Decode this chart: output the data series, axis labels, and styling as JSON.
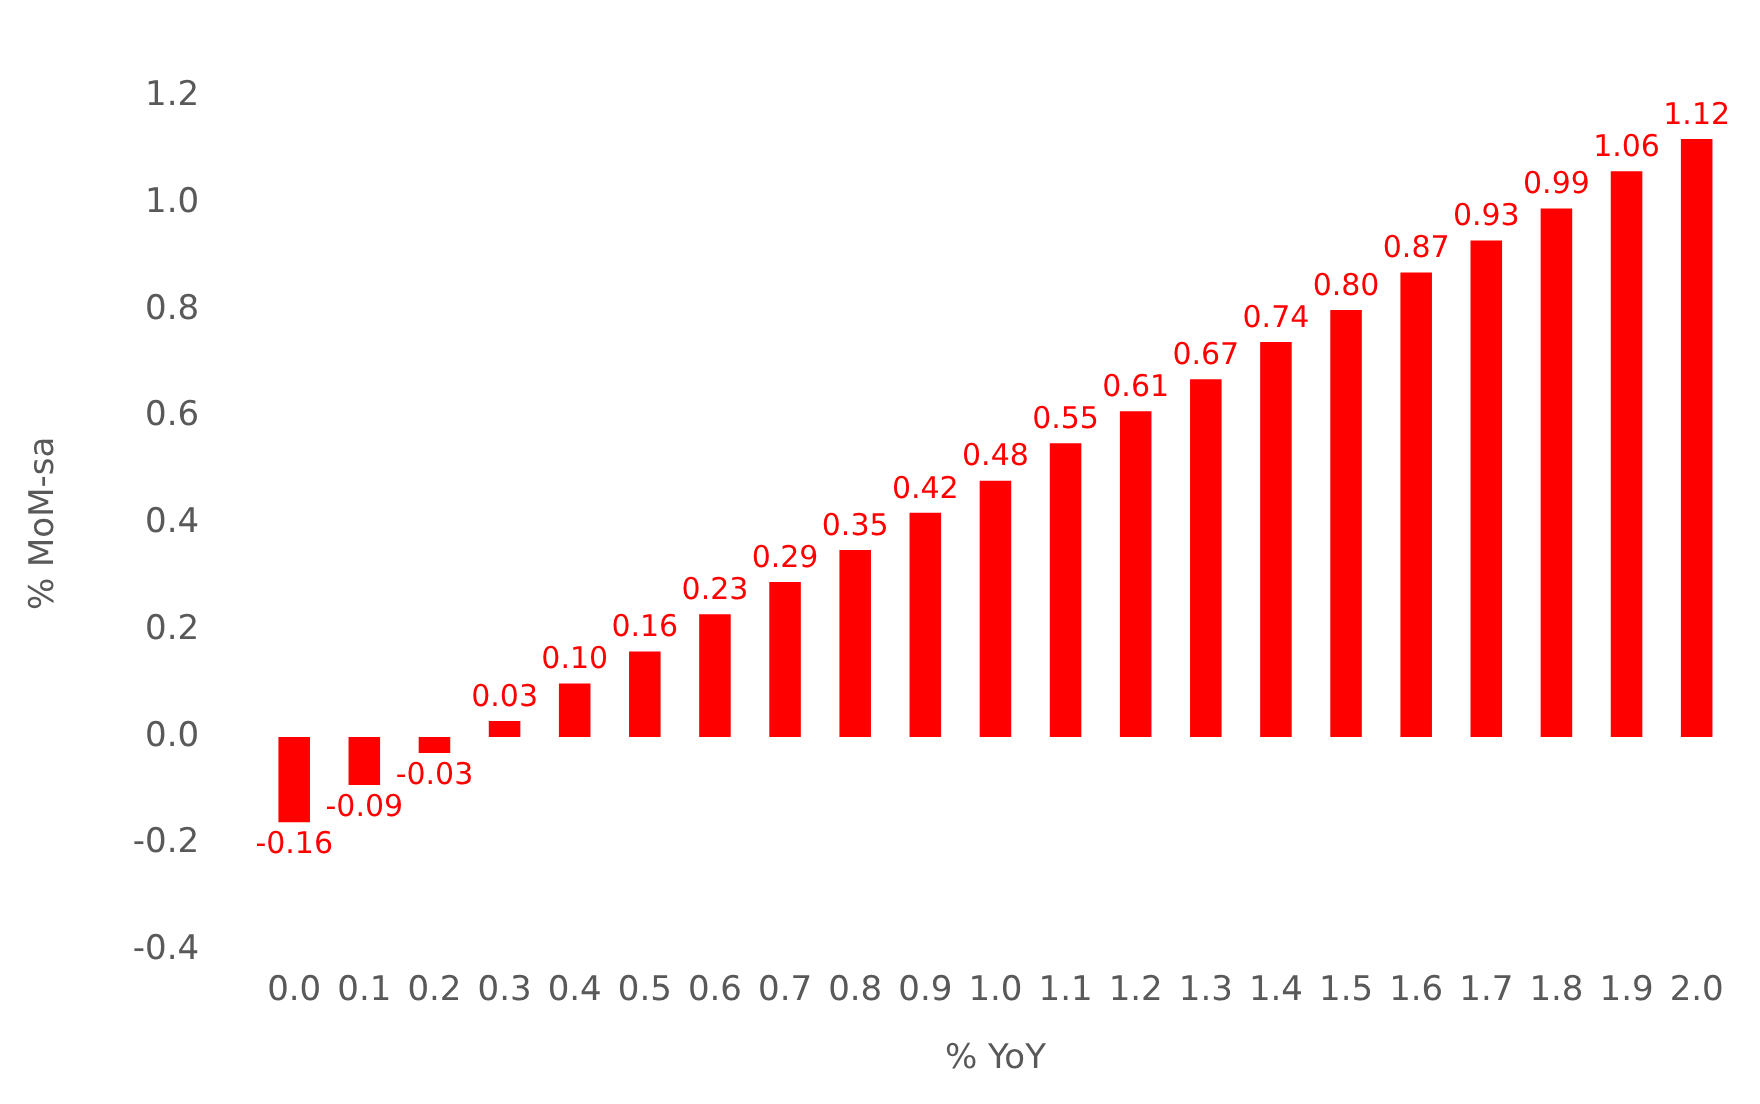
{
  "chart_data": {
    "type": "bar",
    "xlabel": "% YoY",
    "ylabel": "% MoM-sa",
    "categories": [
      "0.0",
      "0.1",
      "0.2",
      "0.3",
      "0.4",
      "0.5",
      "0.6",
      "0.7",
      "0.8",
      "0.9",
      "1.0",
      "1.1",
      "1.2",
      "1.3",
      "1.4",
      "1.5",
      "1.6",
      "1.7",
      "1.8",
      "1.9",
      "2.0"
    ],
    "series": [
      {
        "color": "#ff0000",
        "values": [
          -0.16,
          -0.09,
          -0.03,
          0.03,
          0.1,
          0.16,
          0.23,
          0.29,
          0.35,
          0.42,
          0.48,
          0.55,
          0.61,
          0.67,
          0.74,
          0.8,
          0.87,
          0.93,
          0.99,
          1.06,
          1.12
        ],
        "value_labels": [
          "-0.16",
          "-0.09",
          "-0.03",
          "0.03",
          "0.10",
          "0.16",
          "0.23",
          "0.29",
          "0.35",
          "0.42",
          "0.48",
          "0.55",
          "0.61",
          "0.67",
          "0.74",
          "0.80",
          "0.87",
          "0.93",
          "0.99",
          "1.06",
          "1.12"
        ]
      }
    ],
    "ylim": [
      -0.4,
      1.2
    ],
    "yticks": [
      {
        "value": -0.4,
        "label": "-0.4"
      },
      {
        "value": -0.2,
        "label": "-0.2"
      },
      {
        "value": 0,
        "label": "0.0"
      },
      {
        "value": 0.2,
        "label": "0.2"
      },
      {
        "value": 0.4,
        "label": "0.4"
      },
      {
        "value": 0.6,
        "label": "0.6"
      },
      {
        "value": 0.8,
        "label": "0.8"
      },
      {
        "value": 1,
        "label": "1.0"
      },
      {
        "value": 1.2,
        "label": "1.2"
      }
    ],
    "grid": false,
    "legend": false
  }
}
